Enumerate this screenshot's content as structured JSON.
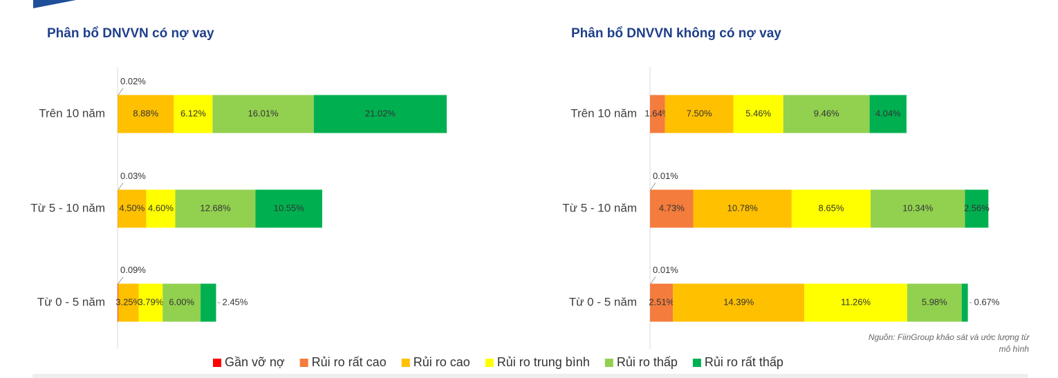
{
  "chart_data": [
    {
      "type": "stacked-bar-horizontal",
      "title": "Phân bổ DNVVN có nợ vay",
      "categories": [
        "Trên 10 năm",
        "Từ 5 - 10 năm",
        "Từ 0 - 5 năm"
      ],
      "xlim": [
        0,
        55
      ],
      "series": [
        {
          "name": "Gần vỡ nợ",
          "color": "#ff0000",
          "values": [
            0.02,
            0.03,
            0.09
          ],
          "value_labels": [
            "0.02%",
            "0.03%",
            "0.09%"
          ]
        },
        {
          "name": "Rủi ro rất cao",
          "color": "#f47c3c",
          "values": [
            null,
            null,
            null
          ],
          "value_labels": [
            null,
            null,
            null
          ]
        },
        {
          "name": "Rủi ro cao",
          "color": "#ffc000",
          "values": [
            8.88,
            4.5,
            3.25
          ],
          "value_labels": [
            "8.88%",
            "4.50%",
            "3.25%"
          ]
        },
        {
          "name": "Rủi ro trung bình",
          "color": "#ffff00",
          "values": [
            6.12,
            4.6,
            3.79
          ],
          "value_labels": [
            "6.12%",
            "4.60%",
            "3.79%"
          ]
        },
        {
          "name": "Rủi ro thấp",
          "color": "#92d050",
          "values": [
            16.01,
            12.68,
            6.0
          ],
          "value_labels": [
            "16.01%",
            "12.68%",
            "6.00%"
          ]
        },
        {
          "name": "Rủi ro rất thấp",
          "color": "#00b050",
          "values": [
            21.02,
            10.55,
            2.45
          ],
          "value_labels": [
            "21.02%",
            "10.55%",
            "2.45%"
          ]
        }
      ]
    },
    {
      "type": "stacked-bar-horizontal",
      "title": "Phân bổ DNVVN không có nợ vay",
      "categories": [
        "Trên 10 năm",
        "Từ 5 - 10 năm",
        "Từ 0 - 5 năm"
      ],
      "xlim": [
        0,
        40
      ],
      "series": [
        {
          "name": "Gần vỡ nợ",
          "color": "#ff0000",
          "values": [
            null,
            0.01,
            0.01
          ],
          "value_labels": [
            null,
            "0.01%",
            "0.01%"
          ]
        },
        {
          "name": "Rủi ro rất cao",
          "color": "#f47c3c",
          "values": [
            1.64,
            4.73,
            2.51
          ],
          "value_labels": [
            "1.64%",
            "4.73%",
            "2.51%"
          ]
        },
        {
          "name": "Rủi ro cao",
          "color": "#ffc000",
          "values": [
            7.5,
            10.78,
            14.39
          ],
          "value_labels": [
            "7.50%",
            "10.78%",
            "14.39%"
          ]
        },
        {
          "name": "Rủi ro trung bình",
          "color": "#ffff00",
          "values": [
            5.46,
            8.65,
            11.26
          ],
          "value_labels": [
            "5.46%",
            "8.65%",
            "11.26%"
          ]
        },
        {
          "name": "Rủi ro thấp",
          "color": "#92d050",
          "values": [
            9.46,
            10.34,
            5.98
          ],
          "value_labels": [
            "9.46%",
            "10.34%",
            "5.98%"
          ]
        },
        {
          "name": "Rủi ro rất thấp",
          "color": "#00b050",
          "values": [
            4.04,
            2.56,
            0.67
          ],
          "value_labels": [
            "4.04%",
            "2.56%",
            "0.67%"
          ]
        }
      ]
    }
  ],
  "source": "Nguồn: FiinGroup khảo sát và ước lượng từ mô hình"
}
